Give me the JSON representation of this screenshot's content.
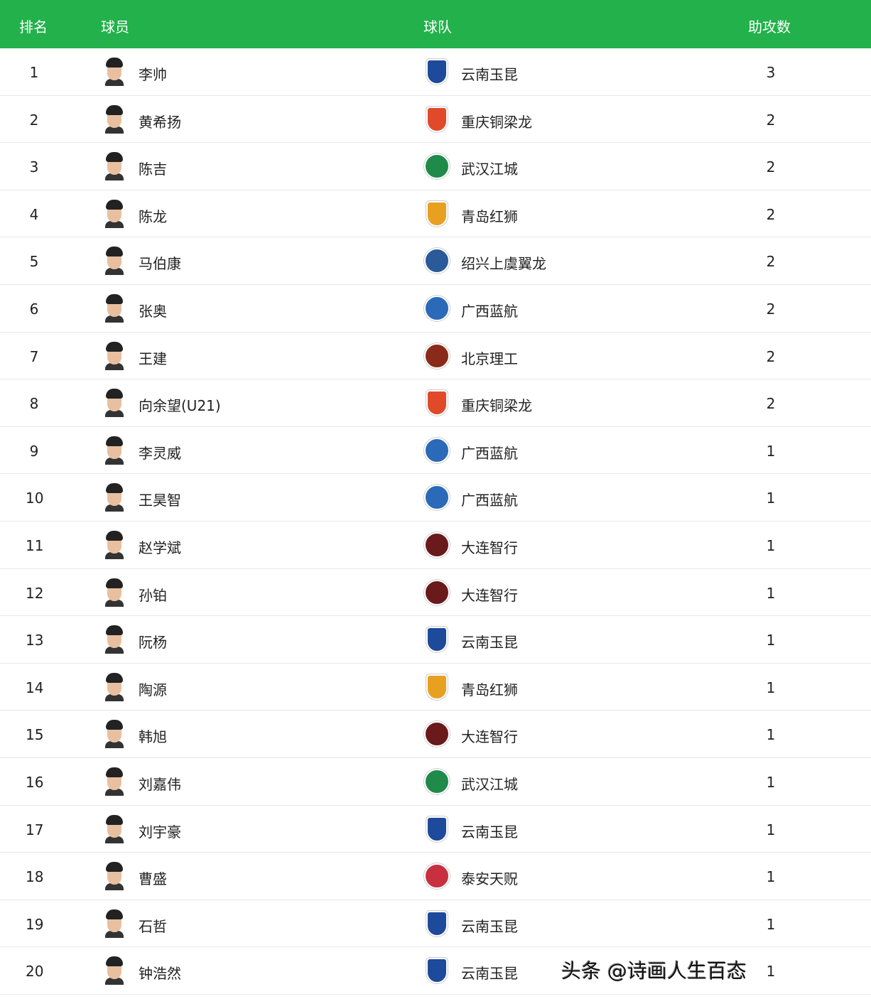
{
  "header": {
    "rank": "排名",
    "player": "球员",
    "team": "球队",
    "assists": "助攻数"
  },
  "team_colors": {
    "云南玉昆": "#1d4a9a",
    "重庆铜梁龙": "#e04a2a",
    "武汉江城": "#1f8a4a",
    "青岛红狮": "#e8a020",
    "绍兴上虞翼龙": "#2a5a9a",
    "广西蓝航": "#2a6ab8",
    "北京理工": "#8a2a1a",
    "大连智行": "#6a1a1a",
    "泰安天贶": "#c83040"
  },
  "rows": [
    {
      "rank": "1",
      "player": "李帅",
      "team": "云南玉昆",
      "assists": "3"
    },
    {
      "rank": "2",
      "player": "黄希扬",
      "team": "重庆铜梁龙",
      "assists": "2"
    },
    {
      "rank": "3",
      "player": "陈吉",
      "team": "武汉江城",
      "assists": "2"
    },
    {
      "rank": "4",
      "player": "陈龙",
      "team": "青岛红狮",
      "assists": "2"
    },
    {
      "rank": "5",
      "player": "马伯康",
      "team": "绍兴上虞翼龙",
      "assists": "2"
    },
    {
      "rank": "6",
      "player": "张奥",
      "team": "广西蓝航",
      "assists": "2"
    },
    {
      "rank": "7",
      "player": "王建",
      "team": "北京理工",
      "assists": "2"
    },
    {
      "rank": "8",
      "player": "向余望(U21)",
      "team": "重庆铜梁龙",
      "assists": "2"
    },
    {
      "rank": "9",
      "player": "李灵威",
      "team": "广西蓝航",
      "assists": "1"
    },
    {
      "rank": "10",
      "player": "王昊智",
      "team": "广西蓝航",
      "assists": "1"
    },
    {
      "rank": "11",
      "player": "赵学斌",
      "team": "大连智行",
      "assists": "1"
    },
    {
      "rank": "12",
      "player": "孙铂",
      "team": "大连智行",
      "assists": "1"
    },
    {
      "rank": "13",
      "player": "阮杨",
      "team": "云南玉昆",
      "assists": "1"
    },
    {
      "rank": "14",
      "player": "陶源",
      "team": "青岛红狮",
      "assists": "1"
    },
    {
      "rank": "15",
      "player": "韩旭",
      "team": "大连智行",
      "assists": "1"
    },
    {
      "rank": "16",
      "player": "刘嘉伟",
      "team": "武汉江城",
      "assists": "1"
    },
    {
      "rank": "17",
      "player": "刘宇豪",
      "team": "云南玉昆",
      "assists": "1"
    },
    {
      "rank": "18",
      "player": "曹盛",
      "team": "泰安天贶",
      "assists": "1"
    },
    {
      "rank": "19",
      "player": "石哲",
      "team": "云南玉昆",
      "assists": "1"
    },
    {
      "rank": "20",
      "player": "钟浩然",
      "team": "云南玉昆",
      "assists": "1"
    }
  ],
  "watermark": "头条 @诗画人生百态"
}
